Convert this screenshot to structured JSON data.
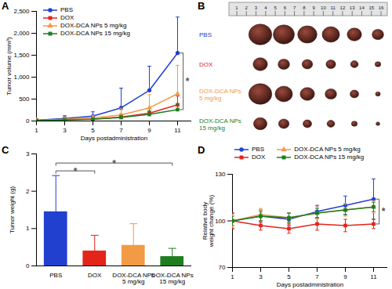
{
  "chart_data": [
    {
      "panel_label": "A",
      "type": "line",
      "x": [
        1,
        3,
        5,
        7,
        9,
        11
      ],
      "xlim": [
        1,
        12
      ],
      "xticks": [
        1,
        3,
        5,
        7,
        9,
        11
      ],
      "ylim": [
        0,
        2500
      ],
      "yticks": [
        0,
        500,
        {
          "value": 1000,
          "label": "1,000"
        },
        {
          "value": 1500,
          "label": "1,500"
        },
        {
          "value": 2000,
          "label": "2,000"
        },
        {
          "value": 2500,
          "label": "2,500"
        }
      ],
      "x_label": "Days postadministration",
      "y_label": "Tumor volume (mm³)",
      "legend": "upper left",
      "series": [
        {
          "name": "PBS",
          "color": "#2140d0",
          "marker": "circle",
          "values": [
            20,
            60,
            110,
            300,
            700,
            1550
          ],
          "errors_upper": [
            10,
            60,
            100,
            450,
            550,
            820
          ]
        },
        {
          "name": "DOX",
          "color": "#e3241b",
          "marker": "square",
          "values": [
            15,
            30,
            45,
            90,
            180,
            370
          ],
          "errors_upper": [
            10,
            20,
            30,
            60,
            120,
            200
          ]
        },
        {
          "name": "DOX-DCA NPs 5 mg/kg",
          "color": "#f39a45",
          "marker": "triangle",
          "values": [
            15,
            40,
            70,
            140,
            300,
            620
          ],
          "errors_upper": [
            10,
            30,
            60,
            150,
            300,
            650
          ]
        },
        {
          "name": "DOX-DCA NPs 15 mg/kg",
          "color": "#1e7d1e",
          "marker": "square",
          "values": [
            10,
            25,
            40,
            80,
            150,
            260
          ],
          "errors_upper": [
            8,
            15,
            25,
            50,
            80,
            110
          ]
        }
      ],
      "annotations": [
        {
          "text": "*",
          "from": "PBS",
          "to": "DOX-DCA NPs 15 mg/kg"
        }
      ]
    },
    {
      "panel_label": "B",
      "type": "image",
      "ruler": [
        1,
        2,
        3,
        4,
        5,
        6,
        7,
        8,
        9,
        10,
        11,
        12,
        13,
        14,
        15,
        16
      ],
      "rows": [
        {
          "label": "PBS",
          "color": "#2140d0",
          "tumor_sizes": [
            2.4,
            2.2,
            2.0,
            1.8,
            1.5,
            1.2
          ]
        },
        {
          "label": "DOX",
          "color": "#e3241b",
          "tumor_sizes": [
            1.5,
            1.2,
            1.1,
            1.0,
            0.8,
            0.6
          ]
        },
        {
          "label": "DOX-DCA NPs\n5 mg/kg",
          "color": "#f39a45",
          "tumor_sizes": [
            2.4,
            1.8,
            1.5,
            1.2,
            0.9,
            0.5
          ]
        },
        {
          "label": "DOX-DCA NPs\n15 mg/kg",
          "color": "#1e7d1e",
          "tumor_sizes": [
            1.4,
            1.1,
            0.9,
            0.8,
            0.6,
            0.4
          ]
        }
      ]
    },
    {
      "panel_label": "C",
      "type": "bar",
      "categories": [
        "PBS",
        "DOX",
        "DOX-DCA NPs\n5 mg/kg",
        "DOX-DCA NPs\n15 mg/kg"
      ],
      "values": [
        1.45,
        0.4,
        0.55,
        0.25
      ],
      "errors_upper": [
        0.97,
        0.42,
        0.58,
        0.22
      ],
      "colors": [
        "#2140d0",
        "#e3241b",
        "#f39a45",
        "#1e7d1e"
      ],
      "ylim": [
        0,
        3
      ],
      "yticks": [
        0,
        1,
        2,
        3
      ],
      "y_label": "Tumor weight (g)",
      "annotations": [
        {
          "text": "*",
          "from": "PBS",
          "to": "DOX"
        },
        {
          "text": "*",
          "from": "PBS",
          "to": "DOX-DCA NPs\n15 mg/kg"
        }
      ]
    },
    {
      "panel_label": "D",
      "type": "line",
      "x": [
        1,
        3,
        5,
        7,
        9,
        11
      ],
      "xlim": [
        1,
        12
      ],
      "xticks": [
        1,
        3,
        5,
        7,
        9,
        11
      ],
      "ylim": [
        70,
        130
      ],
      "yticks": [
        70,
        100,
        130
      ],
      "x_label": "Days postadministration",
      "y_label": "Relative body\nweight change (%)",
      "legend": "top",
      "series": [
        {
          "name": "PBS",
          "color": "#2140d0",
          "marker": "circle",
          "values": [
            100,
            103,
            101,
            106,
            110,
            114
          ],
          "errors": [
            5,
            4,
            4,
            4,
            6,
            13
          ]
        },
        {
          "name": "DOX",
          "color": "#e3241b",
          "marker": "square",
          "values": [
            100,
            97,
            95,
            98,
            97,
            98
          ],
          "errors": [
            5,
            3,
            3,
            4,
            4,
            3
          ]
        },
        {
          "name": "DOX-DCA NPs 5 mg/kg",
          "color": "#f39a45",
          "marker": "triangle",
          "values": [
            100,
            104,
            102,
            105,
            107,
            109
          ],
          "errors": [
            4,
            4,
            3,
            4,
            4,
            4
          ]
        },
        {
          "name": "DOX-DCA NPs 15 mg/kg",
          "color": "#1e7d1e",
          "marker": "square",
          "values": [
            100,
            103,
            102,
            105,
            107,
            109
          ],
          "errors": [
            3,
            3,
            3,
            3,
            3,
            3
          ]
        }
      ],
      "annotations": [
        {
          "text": "*",
          "from": "PBS",
          "to": "DOX"
        }
      ]
    }
  ]
}
